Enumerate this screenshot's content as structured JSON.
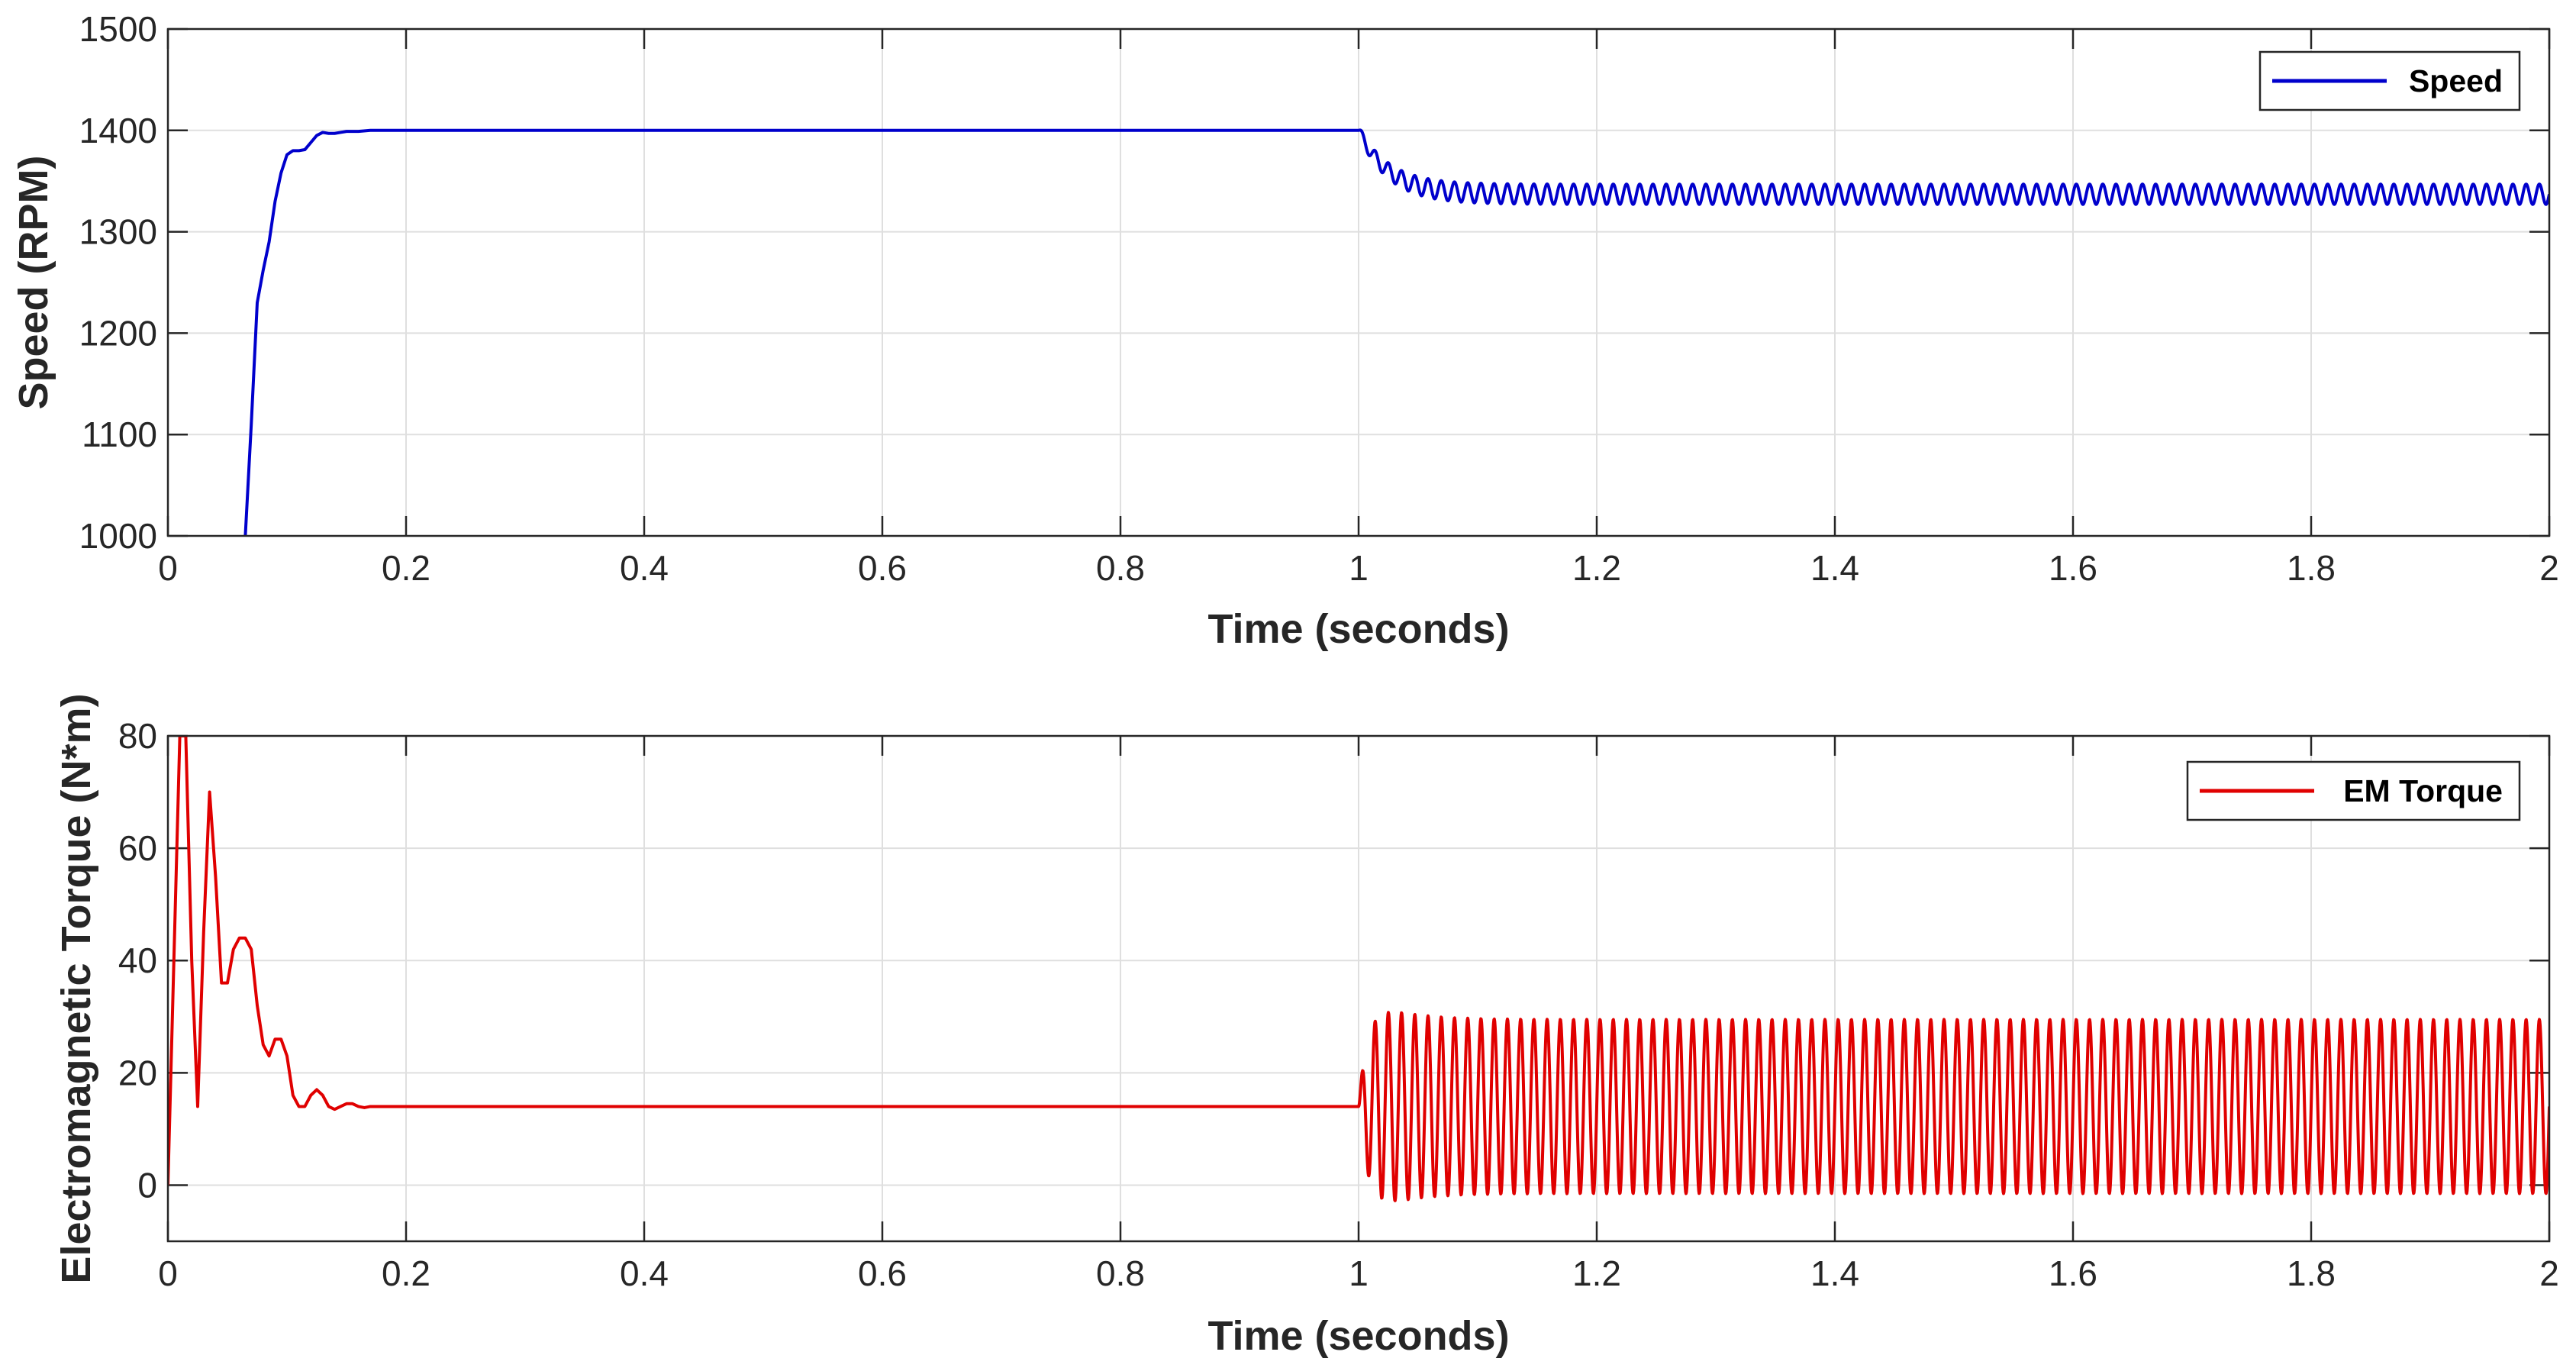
{
  "chart_data": [
    {
      "type": "line",
      "xlabel": "Time (seconds)",
      "ylabel": "Speed (RPM)",
      "xlim": [
        0,
        2
      ],
      "ylim": [
        1000,
        1500
      ],
      "xticks": [
        0,
        0.2,
        0.4,
        0.6,
        0.8,
        1,
        1.2,
        1.4,
        1.6,
        1.8,
        2
      ],
      "yticks": [
        1000,
        1100,
        1200,
        1300,
        1400,
        1500
      ],
      "grid": true,
      "legend_position": "top-right",
      "series": [
        {
          "name": "Speed",
          "color": "#0000CC",
          "x": [
            0.065,
            0.07,
            0.075,
            0.08,
            0.085,
            0.09,
            0.095,
            0.1,
            0.105,
            0.11,
            0.115,
            0.12,
            0.125,
            0.13,
            0.135,
            0.14,
            0.145,
            0.15,
            0.16,
            0.17,
            0.18,
            0.19,
            0.2,
            0.25,
            0.3,
            1.0
          ],
          "y": [
            1000,
            1110,
            1230,
            1262,
            1290,
            1330,
            1358,
            1376,
            1380,
            1380,
            1381,
            1388,
            1395,
            1398,
            1397,
            1397,
            1398,
            1399,
            1399,
            1400,
            1400,
            1400,
            1400,
            1400,
            1400,
            1400
          ],
          "after_step": {
            "oscillation_start_x": 1.0,
            "oscillation_end_x": 2.0,
            "settling_center": 1337,
            "settled_amplitude": 10,
            "cycles_per_second": 90
          }
        }
      ]
    },
    {
      "type": "line",
      "xlabel": "Time (seconds)",
      "ylabel": "Electromagnetic Torque (N*m)",
      "xlim": [
        0,
        2
      ],
      "ylim": [
        -10,
        80
      ],
      "xticks": [
        0,
        0.2,
        0.4,
        0.6,
        0.8,
        1,
        1.2,
        1.4,
        1.6,
        1.8,
        2
      ],
      "yticks": [
        0,
        20,
        40,
        60,
        80
      ],
      "grid": true,
      "legend_position": "top-right",
      "series": [
        {
          "name": "EM Torque",
          "color": "#E00000",
          "x": [
            0,
            0.005,
            0.01,
            0.015,
            0.02,
            0.025,
            0.03,
            0.035,
            0.04,
            0.045,
            0.05,
            0.055,
            0.06,
            0.065,
            0.07,
            0.075,
            0.08,
            0.085,
            0.09,
            0.095,
            0.1,
            0.105,
            0.11,
            0.115,
            0.12,
            0.125,
            0.13,
            0.135,
            0.14,
            0.145,
            0.15,
            0.155,
            0.16,
            0.165,
            0.17,
            0.175,
            0.18,
            0.185,
            0.19,
            0.2,
            0.22,
            0.25,
            0.3,
            1.0
          ],
          "y": [
            0,
            40,
            80,
            80,
            40,
            14,
            45,
            70,
            55,
            36,
            36,
            42,
            44,
            44,
            42,
            32,
            25,
            23,
            26,
            26,
            23,
            16,
            14,
            14,
            16,
            17,
            16,
            14,
            13.5,
            14,
            14.5,
            14.5,
            14,
            13.8,
            14,
            14,
            14,
            14,
            14,
            14,
            14,
            14,
            14,
            14
          ],
          "after_step": {
            "oscillation_start_x": 1.0,
            "oscillation_end_x": 2.0,
            "settling_center": 14,
            "settled_amplitude": 15.5,
            "cycles_per_second": 90
          }
        }
      ]
    }
  ]
}
